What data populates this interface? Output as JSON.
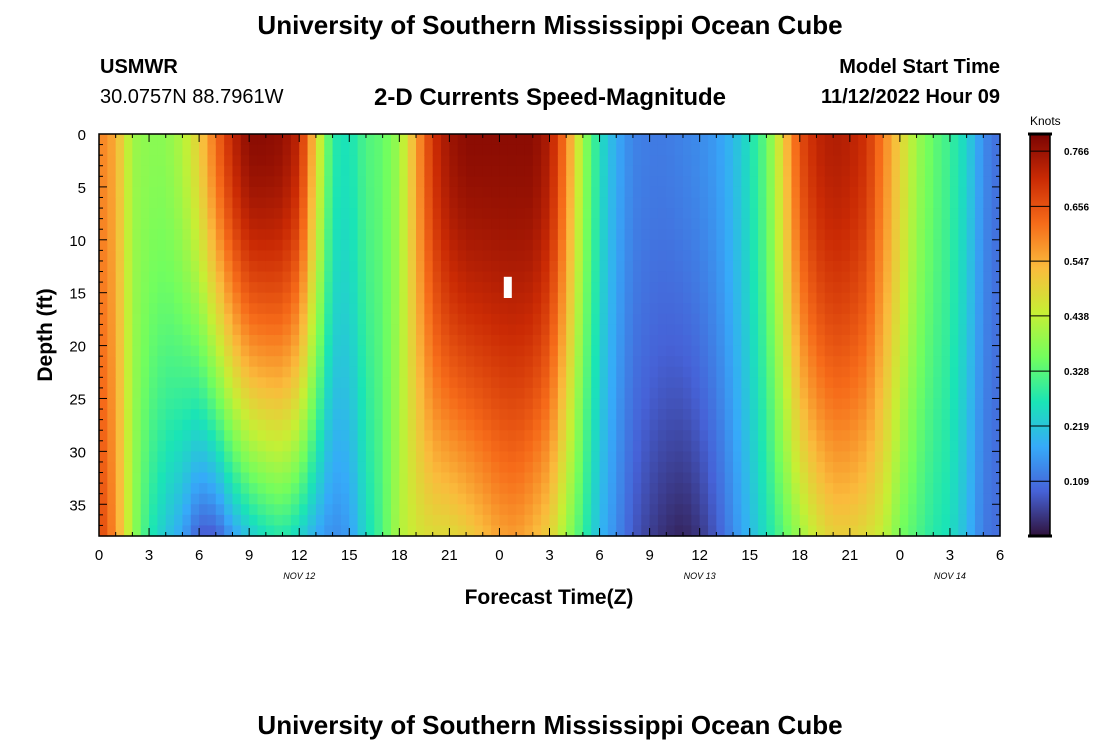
{
  "page": {
    "title": "University of Southern Mississippi Ocean Cube",
    "station": "USMWR",
    "coords": "30.0757N  88.7961W",
    "subtitle": "2-D Currents Speed-Magnitude",
    "model_start_label": "Model Start Time",
    "model_start_value": "11/12/2022 Hour 09",
    "footer_title": "University of Southern Mississippi Ocean Cube"
  },
  "colors": {
    "colormap": [
      "#30123b",
      "#4662d7",
      "#36aaf9",
      "#1ae4b6",
      "#72fe5e",
      "#c7ef34",
      "#fabb3c",
      "#f66b19",
      "#ca2a04",
      "#7a0403"
    ],
    "missing_cell": "#ffffff",
    "frame": "#000000"
  },
  "chart_data": {
    "type": "heatmap",
    "xlabel": "Forecast Time(Z)",
    "ylabel": "Depth (ft)",
    "x_tick_labels": [
      "0",
      "3",
      "6",
      "9",
      "12",
      "15",
      "18",
      "21",
      "0",
      "3",
      "6",
      "9",
      "12",
      "15",
      "18",
      "21",
      "0",
      "3",
      "6"
    ],
    "x_range_hours": [
      0,
      54
    ],
    "date_labels": [
      {
        "text": "NOV 12",
        "hour": 12
      },
      {
        "text": "NOV 13",
        "hour": 36
      },
      {
        "text": "NOV 14",
        "hour": 51
      }
    ],
    "y_ticks": [
      0,
      5,
      10,
      15,
      20,
      25,
      30,
      35
    ],
    "y_range_ft": [
      0,
      38
    ],
    "colorbar": {
      "unit": "Knots",
      "tick_labels": [
        "0.766",
        "0.656",
        "0.547",
        "0.438",
        "0.328",
        "0.219",
        "0.109"
      ],
      "tick_values": [
        0.766,
        0.656,
        0.547,
        0.438,
        0.328,
        0.219,
        0.109
      ],
      "range": [
        0,
        0.8
      ]
    },
    "missing_value": {
      "hour": 24.5,
      "depth_range_ft": [
        13.5,
        15.5
      ]
    },
    "speed_field_keyframes": [
      {
        "hour": 0,
        "top": 0.6,
        "bottom": 0.68
      },
      {
        "hour": 1,
        "top": 0.55,
        "bottom": 0.58
      },
      {
        "hour": 2,
        "top": 0.4,
        "bottom": 0.4
      },
      {
        "hour": 3,
        "top": 0.38,
        "bottom": 0.28
      },
      {
        "hour": 4,
        "top": 0.38,
        "bottom": 0.22
      },
      {
        "hour": 5,
        "top": 0.42,
        "bottom": 0.17
      },
      {
        "hour": 6,
        "top": 0.5,
        "bottom": 0.08
      },
      {
        "hour": 7,
        "top": 0.62,
        "bottom": 0.08
      },
      {
        "hour": 8,
        "top": 0.72,
        "bottom": 0.16
      },
      {
        "hour": 9,
        "top": 0.78,
        "bottom": 0.22
      },
      {
        "hour": 10,
        "top": 0.78,
        "bottom": 0.26
      },
      {
        "hour": 11,
        "top": 0.77,
        "bottom": 0.28
      },
      {
        "hour": 12,
        "top": 0.72,
        "bottom": 0.24
      },
      {
        "hour": 13,
        "top": 0.5,
        "bottom": 0.18
      },
      {
        "hour": 14,
        "top": 0.28,
        "bottom": 0.14
      },
      {
        "hour": 15,
        "top": 0.26,
        "bottom": 0.16
      },
      {
        "hour": 16,
        "top": 0.32,
        "bottom": 0.25
      },
      {
        "hour": 17,
        "top": 0.34,
        "bottom": 0.32
      },
      {
        "hour": 18,
        "top": 0.4,
        "bottom": 0.42
      },
      {
        "hour": 19,
        "top": 0.56,
        "bottom": 0.46
      },
      {
        "hour": 20,
        "top": 0.7,
        "bottom": 0.48
      },
      {
        "hour": 21,
        "top": 0.76,
        "bottom": 0.48
      },
      {
        "hour": 22,
        "top": 0.78,
        "bottom": 0.5
      },
      {
        "hour": 23,
        "top": 0.78,
        "bottom": 0.53
      },
      {
        "hour": 24,
        "top": 0.78,
        "bottom": 0.56
      },
      {
        "hour": 25,
        "top": 0.78,
        "bottom": 0.57
      },
      {
        "hour": 26,
        "top": 0.78,
        "bottom": 0.54
      },
      {
        "hour": 27,
        "top": 0.74,
        "bottom": 0.5
      },
      {
        "hour": 28,
        "top": 0.6,
        "bottom": 0.4
      },
      {
        "hour": 29,
        "top": 0.4,
        "bottom": 0.3
      },
      {
        "hour": 30,
        "top": 0.26,
        "bottom": 0.2
      },
      {
        "hour": 31,
        "top": 0.18,
        "bottom": 0.14
      },
      {
        "hour": 32,
        "top": 0.13,
        "bottom": 0.08
      },
      {
        "hour": 33,
        "top": 0.12,
        "bottom": 0.05
      },
      {
        "hour": 34,
        "top": 0.12,
        "bottom": 0.03
      },
      {
        "hour": 35,
        "top": 0.13,
        "bottom": 0.02
      },
      {
        "hour": 36,
        "top": 0.14,
        "bottom": 0.04
      },
      {
        "hour": 37,
        "top": 0.16,
        "bottom": 0.08
      },
      {
        "hour": 38,
        "top": 0.2,
        "bottom": 0.14
      },
      {
        "hour": 39,
        "top": 0.26,
        "bottom": 0.2
      },
      {
        "hour": 40,
        "top": 0.34,
        "bottom": 0.26
      },
      {
        "hour": 41,
        "top": 0.5,
        "bottom": 0.33
      },
      {
        "hour": 42,
        "top": 0.66,
        "bottom": 0.4
      },
      {
        "hour": 43,
        "top": 0.72,
        "bottom": 0.46
      },
      {
        "hour": 44,
        "top": 0.74,
        "bottom": 0.5
      },
      {
        "hour": 45,
        "top": 0.73,
        "bottom": 0.5
      },
      {
        "hour": 46,
        "top": 0.7,
        "bottom": 0.48
      },
      {
        "hour": 47,
        "top": 0.6,
        "bottom": 0.44
      },
      {
        "hour": 48,
        "top": 0.5,
        "bottom": 0.36
      },
      {
        "hour": 49,
        "top": 0.4,
        "bottom": 0.32
      },
      {
        "hour": 50,
        "top": 0.34,
        "bottom": 0.28
      },
      {
        "hour": 51,
        "top": 0.3,
        "bottom": 0.26
      },
      {
        "hour": 52,
        "top": 0.24,
        "bottom": 0.2
      },
      {
        "hour": 53,
        "top": 0.14,
        "bottom": 0.12
      },
      {
        "hour": 54,
        "top": 0.1,
        "bottom": 0.1
      }
    ]
  }
}
